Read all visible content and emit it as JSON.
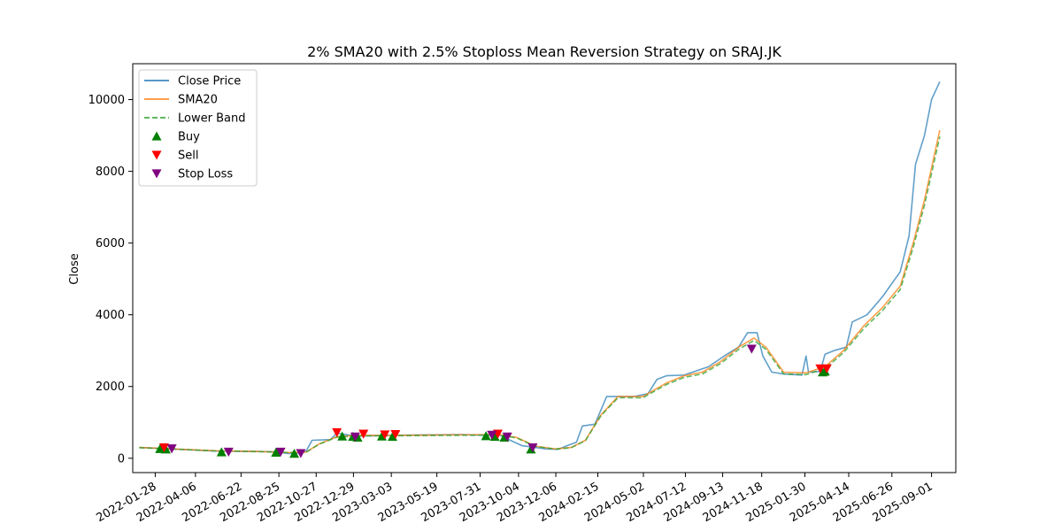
{
  "chart_data": {
    "type": "line",
    "title": "2% SMA20 with 2.5% Stoploss Mean Reversion Strategy on SRAJ.JK",
    "xlabel": "",
    "ylabel": "Close",
    "x_tick_labels": [
      "2022-01-28",
      "2022-04-06",
      "2022-06-22",
      "2022-08-25",
      "2022-10-27",
      "2022-12-29",
      "2023-03-03",
      "2023-05-19",
      "2023-07-31",
      "2023-10-04",
      "2023-12-06",
      "2024-02-15",
      "2024-05-02",
      "2024-07-12",
      "2024-09-13",
      "2024-11-18",
      "2025-01-30",
      "2025-04-14",
      "2025-06-26",
      "2025-09-01"
    ],
    "y_ticks": [
      0,
      2000,
      4000,
      6000,
      8000,
      10000
    ],
    "xlim": [
      "2021-12-21",
      "2025-10-12"
    ],
    "ylim": [
      -400,
      11000
    ],
    "legend": {
      "placement": "top-left",
      "entries": [
        "Close Price",
        "SMA20",
        "Lower Band",
        "Buy",
        "Sell",
        "Stop Loss"
      ]
    },
    "colors": {
      "close": "#1f77b4",
      "sma": "#ff7f0e",
      "lower": "#2ca02c",
      "buy": "#008000",
      "sell": "#ff0000",
      "stop": "#800080"
    },
    "series": [
      {
        "name": "Close Price",
        "style": "solid",
        "points": [
          [
            "2022-01-01",
            300
          ],
          [
            "2022-02-10",
            270
          ],
          [
            "2022-03-20",
            240
          ],
          [
            "2022-05-10",
            200
          ],
          [
            "2022-07-01",
            190
          ],
          [
            "2022-08-10",
            185
          ],
          [
            "2022-08-25",
            170
          ],
          [
            "2022-09-10",
            130
          ],
          [
            "2022-09-25",
            140
          ],
          [
            "2022-10-10",
            200
          ],
          [
            "2022-10-20",
            500
          ],
          [
            "2022-11-20",
            520
          ],
          [
            "2022-12-01",
            700
          ],
          [
            "2022-12-20",
            650
          ],
          [
            "2023-01-10",
            620
          ],
          [
            "2023-03-01",
            640
          ],
          [
            "2023-05-01",
            650
          ],
          [
            "2023-07-01",
            660
          ],
          [
            "2023-08-10",
            640
          ],
          [
            "2023-09-01",
            650
          ],
          [
            "2023-09-20",
            500
          ],
          [
            "2023-10-10",
            350
          ],
          [
            "2023-11-01",
            300
          ],
          [
            "2023-11-20",
            260
          ],
          [
            "2023-12-10",
            250
          ],
          [
            "2023-12-25",
            350
          ],
          [
            "2024-01-10",
            450
          ],
          [
            "2024-01-20",
            900
          ],
          [
            "2024-02-10",
            950
          ],
          [
            "2024-03-01",
            1720
          ],
          [
            "2024-04-15",
            1720
          ],
          [
            "2024-05-10",
            1800
          ],
          [
            "2024-05-25",
            2200
          ],
          [
            "2024-06-10",
            2300
          ],
          [
            "2024-07-10",
            2320
          ],
          [
            "2024-08-20",
            2550
          ],
          [
            "2024-09-20",
            2900
          ],
          [
            "2024-10-10",
            3100
          ],
          [
            "2024-10-25",
            3500
          ],
          [
            "2024-11-10",
            3500
          ],
          [
            "2024-11-20",
            2850
          ],
          [
            "2024-12-05",
            2400
          ],
          [
            "2024-12-25",
            2350
          ],
          [
            "2025-01-25",
            2320
          ],
          [
            "2025-02-01",
            2850
          ],
          [
            "2025-02-05",
            2400
          ],
          [
            "2025-02-25",
            2420
          ],
          [
            "2025-03-05",
            2900
          ],
          [
            "2025-03-20",
            3000
          ],
          [
            "2025-04-10",
            3100
          ],
          [
            "2025-04-20",
            3800
          ],
          [
            "2025-05-15",
            4000
          ],
          [
            "2025-06-10",
            4500
          ],
          [
            "2025-07-10",
            5200
          ],
          [
            "2025-07-25",
            6200
          ],
          [
            "2025-08-05",
            8200
          ],
          [
            "2025-08-20",
            9000
          ],
          [
            "2025-09-01",
            10000
          ],
          [
            "2025-09-15",
            10500
          ]
        ]
      },
      {
        "name": "SMA20",
        "style": "solid",
        "points": [
          [
            "2022-01-01",
            300
          ],
          [
            "2022-03-01",
            260
          ],
          [
            "2022-05-10",
            210
          ],
          [
            "2022-07-20",
            190
          ],
          [
            "2022-09-10",
            160
          ],
          [
            "2022-10-10",
            170
          ],
          [
            "2022-11-01",
            400
          ],
          [
            "2022-12-01",
            600
          ],
          [
            "2023-01-01",
            640
          ],
          [
            "2023-03-01",
            640
          ],
          [
            "2023-06-01",
            650
          ],
          [
            "2023-09-01",
            660
          ],
          [
            "2023-10-01",
            580
          ],
          [
            "2023-11-01",
            340
          ],
          [
            "2023-12-05",
            260
          ],
          [
            "2024-01-01",
            300
          ],
          [
            "2024-01-25",
            500
          ],
          [
            "2024-02-20",
            1200
          ],
          [
            "2024-03-20",
            1720
          ],
          [
            "2024-05-01",
            1720
          ],
          [
            "2024-06-10",
            2100
          ],
          [
            "2024-07-10",
            2300
          ],
          [
            "2024-08-10",
            2400
          ],
          [
            "2024-09-10",
            2700
          ],
          [
            "2024-10-10",
            3100
          ],
          [
            "2024-11-05",
            3350
          ],
          [
            "2024-11-25",
            3100
          ],
          [
            "2024-12-25",
            2400
          ],
          [
            "2025-02-01",
            2380
          ],
          [
            "2025-03-05",
            2550
          ],
          [
            "2025-04-05",
            3000
          ],
          [
            "2025-05-10",
            3700
          ],
          [
            "2025-06-10",
            4200
          ],
          [
            "2025-07-10",
            4800
          ],
          [
            "2025-08-01",
            6000
          ],
          [
            "2025-08-20",
            7200
          ],
          [
            "2025-09-15",
            9150
          ]
        ]
      },
      {
        "name": "Lower Band",
        "style": "dashed",
        "points": [
          [
            "2022-01-01",
            294
          ],
          [
            "2022-03-01",
            255
          ],
          [
            "2022-05-10",
            205
          ],
          [
            "2022-07-20",
            186
          ],
          [
            "2022-09-10",
            157
          ],
          [
            "2022-10-10",
            167
          ],
          [
            "2022-11-01",
            392
          ],
          [
            "2022-12-01",
            588
          ],
          [
            "2023-01-01",
            627
          ],
          [
            "2023-03-01",
            627
          ],
          [
            "2023-06-01",
            637
          ],
          [
            "2023-09-01",
            647
          ],
          [
            "2023-10-01",
            568
          ],
          [
            "2023-11-01",
            333
          ],
          [
            "2023-12-05",
            255
          ],
          [
            "2024-01-01",
            294
          ],
          [
            "2024-01-25",
            490
          ],
          [
            "2024-02-20",
            1176
          ],
          [
            "2024-03-20",
            1686
          ],
          [
            "2024-05-01",
            1686
          ],
          [
            "2024-06-10",
            2058
          ],
          [
            "2024-07-10",
            2254
          ],
          [
            "2024-08-10",
            2352
          ],
          [
            "2024-09-10",
            2646
          ],
          [
            "2024-10-10",
            3038
          ],
          [
            "2024-11-05",
            3283
          ],
          [
            "2024-11-25",
            3038
          ],
          [
            "2024-12-25",
            2352
          ],
          [
            "2025-02-01",
            2332
          ],
          [
            "2025-03-05",
            2499
          ],
          [
            "2025-04-05",
            2940
          ],
          [
            "2025-05-10",
            3626
          ],
          [
            "2025-06-10",
            4116
          ],
          [
            "2025-07-10",
            4704
          ],
          [
            "2025-08-01",
            5880
          ],
          [
            "2025-08-20",
            7056
          ],
          [
            "2025-09-15",
            8970
          ]
        ]
      }
    ],
    "markers": {
      "Buy": [
        [
          "2022-02-05",
          260
        ],
        [
          "2022-02-15",
          250
        ],
        [
          "2022-05-20",
          170
        ],
        [
          "2022-08-20",
          160
        ],
        [
          "2022-09-20",
          130
        ],
        [
          "2022-12-10",
          610
        ],
        [
          "2022-12-28",
          600
        ],
        [
          "2023-01-05",
          580
        ],
        [
          "2023-02-15",
          610
        ],
        [
          "2023-03-05",
          600
        ],
        [
          "2023-08-10",
          620
        ],
        [
          "2023-08-25",
          600
        ],
        [
          "2023-09-10",
          580
        ],
        [
          "2023-10-25",
          250
        ],
        [
          "2025-03-01",
          2400
        ],
        [
          "2025-03-05",
          2420
        ]
      ],
      "Sell": [
        [
          "2022-02-12",
          300
        ],
        [
          "2022-12-01",
          720
        ],
        [
          "2023-01-15",
          680
        ],
        [
          "2023-02-20",
          660
        ],
        [
          "2023-03-10",
          670
        ],
        [
          "2023-08-30",
          680
        ],
        [
          "2025-02-25",
          2500
        ],
        [
          "2025-03-08",
          2500
        ]
      ],
      "Stop Loss": [
        [
          "2022-02-25",
          270
        ],
        [
          "2022-06-01",
          180
        ],
        [
          "2022-08-28",
          180
        ],
        [
          "2022-10-01",
          140
        ],
        [
          "2023-01-01",
          600
        ],
        [
          "2023-08-20",
          650
        ],
        [
          "2023-09-15",
          600
        ],
        [
          "2023-10-28",
          300
        ],
        [
          "2024-11-01",
          3050
        ]
      ]
    }
  }
}
